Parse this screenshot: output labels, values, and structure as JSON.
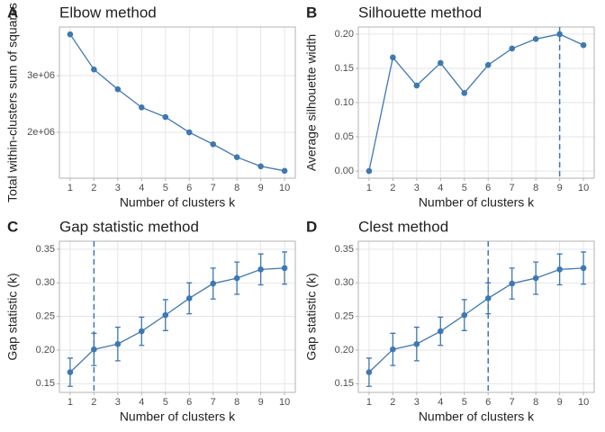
{
  "chart_data": [
    {
      "type": "line",
      "tag": "A",
      "title": "Elbow method",
      "x_label": "Number of clusters k",
      "y_label": "Total within-clusters sum of squares",
      "x": [
        1,
        2,
        3,
        4,
        5,
        6,
        7,
        8,
        9,
        10
      ],
      "series": [
        {
          "color": "#3e78b2",
          "values": [
            3730000,
            3110000,
            2760000,
            2440000,
            2270000,
            2000000,
            1790000,
            1560000,
            1400000,
            1320000
          ]
        }
      ],
      "xlim": [
        0.55,
        10.45
      ],
      "xticks": [
        1,
        2,
        3,
        4,
        5,
        6,
        7,
        8,
        9,
        10
      ],
      "ylim": [
        1190000,
        3860000
      ],
      "yticks": [
        {
          "value": 2000000,
          "label": "2e+06"
        },
        {
          "value": 3000000,
          "label": "3e+06"
        }
      ],
      "grid": true
    },
    {
      "type": "line",
      "tag": "B",
      "title": "Silhouette method",
      "x_label": "Number of clusters k",
      "y_label": "Average silhouette width",
      "x": [
        1,
        2,
        3,
        4,
        5,
        6,
        7,
        8,
        9,
        10
      ],
      "series": [
        {
          "color": "#3e78b2",
          "values": [
            0,
            0.166,
            0.125,
            0.158,
            0.114,
            0.155,
            0.179,
            0.193,
            0.2,
            0.184
          ]
        }
      ],
      "xlim": [
        0.55,
        10.45
      ],
      "xticks": [
        1,
        2,
        3,
        4,
        5,
        6,
        7,
        8,
        9,
        10
      ],
      "ylim": [
        -0.0105,
        0.2105
      ],
      "yticks": [
        {
          "value": 0,
          "label": "0.00"
        },
        {
          "value": 0.05,
          "label": "0.05"
        },
        {
          "value": 0.1,
          "label": "0.10"
        },
        {
          "value": 0.15,
          "label": "0.15"
        },
        {
          "value": 0.2,
          "label": "0.20"
        }
      ],
      "vline": 9,
      "grid": true
    },
    {
      "type": "line",
      "tag": "C",
      "title": "Gap statistic method",
      "x_label": "Number of clusters k",
      "y_label": "Gap statistic (k)",
      "x": [
        1,
        2,
        3,
        4,
        5,
        6,
        7,
        8,
        9,
        10
      ],
      "series": [
        {
          "color": "#3e78b2",
          "values": [
            0.167,
            0.201,
            0.209,
            0.228,
            0.252,
            0.277,
            0.299,
            0.307,
            0.32,
            0.322
          ],
          "errors": [
            0.021,
            0.024,
            0.025,
            0.021,
            0.023,
            0.023,
            0.023,
            0.024,
            0.023,
            0.024
          ]
        }
      ],
      "xlim": [
        0.55,
        10.45
      ],
      "xticks": [
        1,
        2,
        3,
        4,
        5,
        6,
        7,
        8,
        9,
        10
      ],
      "ylim": [
        0.137,
        0.362
      ],
      "yticks": [
        0.15,
        {
          "value": 0.2,
          "label": "0.20"
        },
        0.25,
        {
          "value": 0.3,
          "label": "0.30"
        },
        0.35
      ],
      "vline": 2,
      "grid": true
    },
    {
      "type": "line",
      "tag": "D",
      "title": "Clest method",
      "x_label": "Number of clusters k",
      "y_label": "Gap statistic (k)",
      "x": [
        1,
        2,
        3,
        4,
        5,
        6,
        7,
        8,
        9,
        10
      ],
      "series": [
        {
          "color": "#3e78b2",
          "values": [
            0.167,
            0.201,
            0.209,
            0.228,
            0.252,
            0.277,
            0.299,
            0.307,
            0.32,
            0.322
          ],
          "errors": [
            0.021,
            0.024,
            0.025,
            0.021,
            0.023,
            0.023,
            0.023,
            0.024,
            0.023,
            0.024
          ]
        }
      ],
      "xlim": [
        0.55,
        10.45
      ],
      "xticks": [
        1,
        2,
        3,
        4,
        5,
        6,
        7,
        8,
        9,
        10
      ],
      "ylim": [
        0.137,
        0.362
      ],
      "yticks": [
        0.15,
        {
          "value": 0.2,
          "label": "0.20"
        },
        0.25,
        {
          "value": 0.3,
          "label": "0.30"
        },
        0.35
      ],
      "vline": 6,
      "grid": true
    }
  ]
}
